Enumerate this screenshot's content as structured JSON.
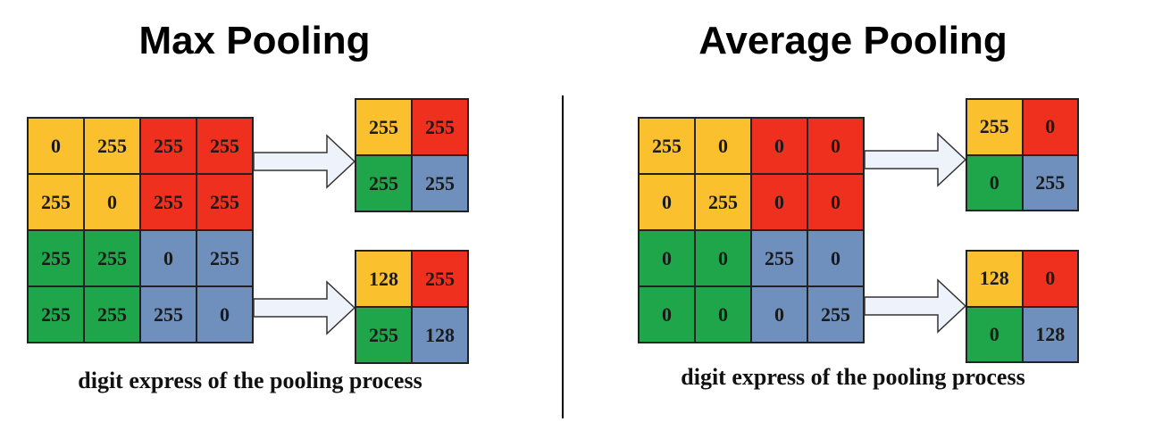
{
  "colors": {
    "yellow": "#fbc02d",
    "red": "#f0301e",
    "green": "#1fa64a",
    "blue": "#6f8fbd",
    "arrow_fill": "#eef2fa"
  },
  "panels": [
    {
      "title": "Max Pooling",
      "caption": "digit express of the pooling process",
      "input": [
        [
          "0",
          "255",
          "255",
          "255"
        ],
        [
          "255",
          "0",
          "255",
          "255"
        ],
        [
          "255",
          "255",
          "0",
          "255"
        ],
        [
          "255",
          "255",
          "255",
          "0"
        ]
      ],
      "input_colors": [
        [
          "yellow",
          "yellow",
          "red",
          "red"
        ],
        [
          "yellow",
          "yellow",
          "red",
          "red"
        ],
        [
          "green",
          "green",
          "blue",
          "blue"
        ],
        [
          "green",
          "green",
          "blue",
          "blue"
        ]
      ],
      "output_max": [
        [
          "255",
          "255"
        ],
        [
          "255",
          "255"
        ]
      ],
      "output_avg": [
        [
          "128",
          "255"
        ],
        [
          "255",
          "128"
        ]
      ],
      "output_colors": [
        [
          "yellow",
          "red"
        ],
        [
          "green",
          "blue"
        ]
      ]
    },
    {
      "title": "Average Pooling",
      "caption": "digit express of the pooling process",
      "input": [
        [
          "255",
          "0",
          "0",
          "0"
        ],
        [
          "0",
          "255",
          "0",
          "0"
        ],
        [
          "0",
          "0",
          "255",
          "0"
        ],
        [
          "0",
          "0",
          "0",
          "255"
        ]
      ],
      "input_colors": [
        [
          "yellow",
          "yellow",
          "red",
          "red"
        ],
        [
          "yellow",
          "yellow",
          "red",
          "red"
        ],
        [
          "green",
          "green",
          "blue",
          "blue"
        ],
        [
          "green",
          "green",
          "blue",
          "blue"
        ]
      ],
      "output_max": [
        [
          "255",
          "0"
        ],
        [
          "0",
          "255"
        ]
      ],
      "output_avg": [
        [
          "128",
          "0"
        ],
        [
          "0",
          "128"
        ]
      ],
      "output_colors": [
        [
          "yellow",
          "red"
        ],
        [
          "green",
          "blue"
        ]
      ]
    }
  ]
}
